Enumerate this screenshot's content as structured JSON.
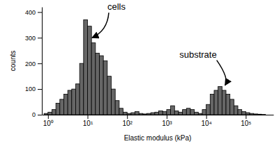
{
  "chart_data": {
    "type": "histogram",
    "x_label": "Elastic modulus (kPa)",
    "y_label": "counts",
    "log": "x",
    "color": "#666666",
    "bins": [
      0.7943,
      1,
      1.259,
      1.585,
      1.995,
      2.512,
      3.162,
      3.981,
      5.012,
      6.31,
      7.943,
      10,
      12.59,
      15.85,
      19.95,
      25.12,
      31.62,
      39.81,
      50.12,
      63.1,
      79.43,
      100,
      125.9,
      158.5,
      199.5,
      251.2,
      316.2,
      398.1,
      501.2,
      631.0,
      794.3,
      1000,
      1259,
      1585,
      1995,
      2512,
      3162,
      3981,
      5012,
      6310,
      7943,
      10000,
      12589,
      15849,
      19953,
      25119,
      31623,
      39811,
      50119,
      63096,
      79433,
      100000,
      125893,
      158489,
      199526,
      251189,
      316228
    ],
    "counts": [
      5,
      10,
      20,
      45,
      60,
      80,
      95,
      100,
      120,
      200,
      370,
      345,
      280,
      240,
      230,
      210,
      150,
      100,
      55,
      25,
      10,
      5,
      8,
      12,
      5,
      3,
      5,
      8,
      10,
      15,
      12,
      20,
      35,
      15,
      10,
      20,
      25,
      20,
      10,
      5,
      20,
      40,
      80,
      95,
      110,
      95,
      80,
      60,
      35,
      20,
      12,
      8,
      5,
      3,
      2,
      1
    ],
    "xlim": [
      0.7,
      500000
    ],
    "xticks": [
      {
        "value": 1,
        "label": "10⁰"
      },
      {
        "value": 10,
        "label": "10¹"
      },
      {
        "value": 100,
        "label": "10²"
      },
      {
        "value": 1000,
        "label": "10³"
      },
      {
        "value": 10000,
        "label": "10⁴"
      },
      {
        "value": 100000,
        "label": "10⁵"
      }
    ],
    "ylim": [
      0,
      420
    ],
    "yticks": [
      0,
      100,
      200,
      300,
      400
    ],
    "annotations": [
      {
        "text": "cells",
        "x": 13,
        "y": 300
      },
      {
        "text": "substrate",
        "x": 30000,
        "y": 115
      }
    ]
  }
}
